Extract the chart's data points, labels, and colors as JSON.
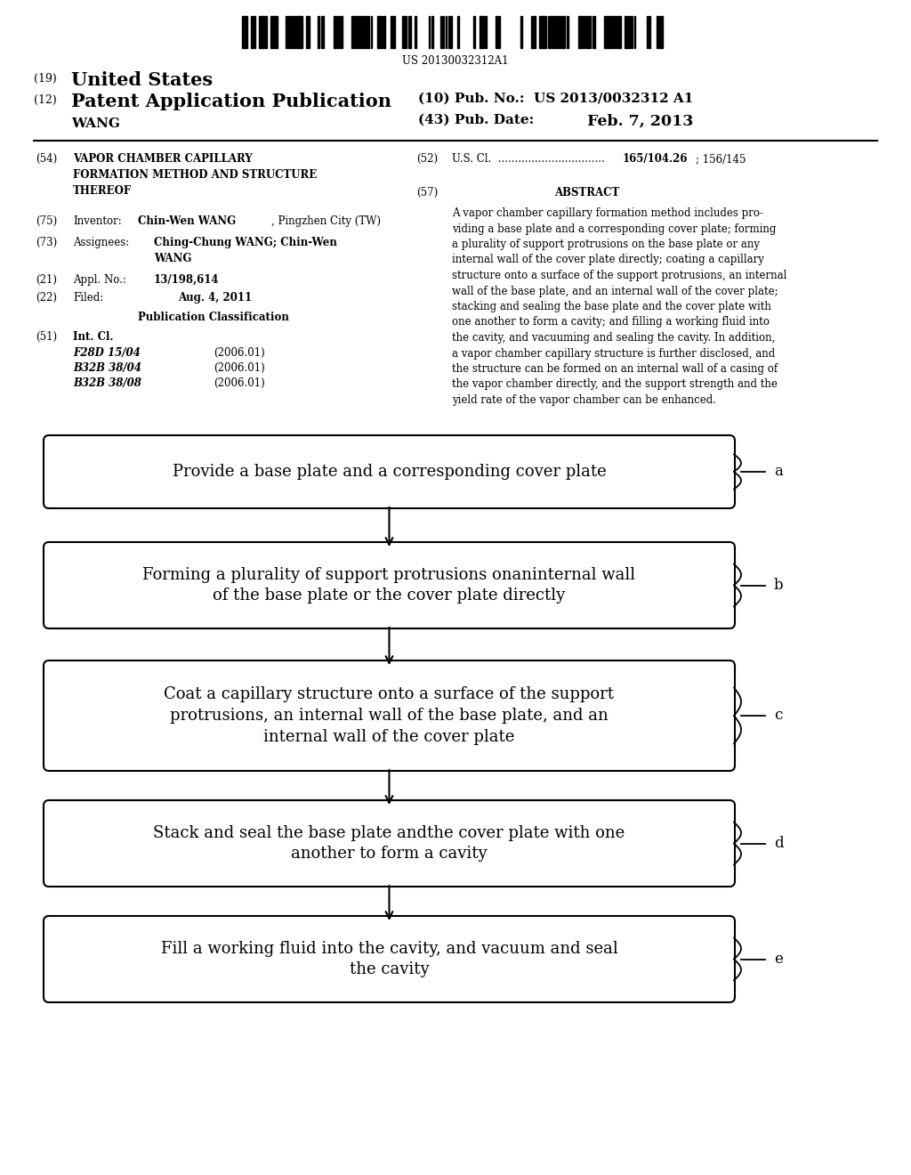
{
  "bg_color": "#ffffff",
  "barcode_text": "US 20130032312A1",
  "flow_boxes": [
    {
      "label": "a",
      "text": "Provide a base plate and a corresponding cover plate",
      "nlines": 1
    },
    {
      "label": "b",
      "text": "Forming a plurality of support protrusions onaninternal wall\nof the base plate or the cover plate directly",
      "nlines": 2
    },
    {
      "label": "c",
      "text": "Coat a capillary structure onto a surface of the support\nprotrusions, an internal wall of the base plate, and an\ninternal wall of the cover plate",
      "nlines": 3
    },
    {
      "label": "d",
      "text": "Stack and seal the base plate andthe cover plate with one\nanother to form a cavity",
      "nlines": 2
    },
    {
      "label": "e",
      "text": "Fill a working fluid into the cavity, and vacuum and seal\nthe cavity",
      "nlines": 2
    }
  ]
}
